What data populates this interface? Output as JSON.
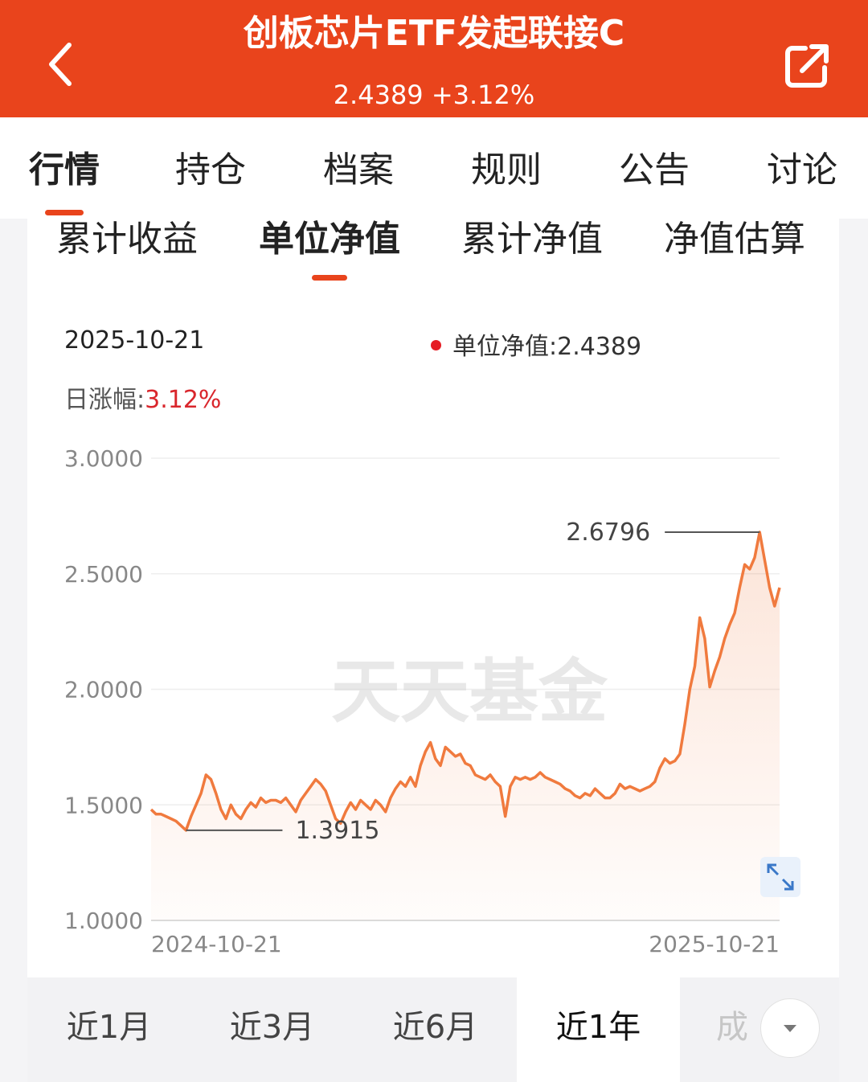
{
  "header": {
    "title": "创板芯片ETF发起联接C",
    "subtitle": "2.4389 +3.12%",
    "back_icon": "chevron-left-icon",
    "share_icon": "share-icon"
  },
  "main_tabs": [
    "行情",
    "持仓",
    "档案",
    "规则",
    "公告",
    "讨论"
  ],
  "sub_tabs": [
    "累计收益",
    "单位净值",
    "累计净值",
    "净值估算"
  ],
  "info": {
    "date": "2025-10-21",
    "nav_label": "单位净值:",
    "nav_value": "2.4389",
    "change_label": "日涨幅:",
    "change_value": "3.12%"
  },
  "watermark": "天天基金",
  "chart_data": {
    "type": "area",
    "y_ticks": [
      "3.0000",
      "2.5000",
      "2.0000",
      "1.5000",
      "1.0000"
    ],
    "ylim": [
      1.0,
      3.0
    ],
    "x_labels": [
      "2024-10-21",
      "2025-10-21"
    ],
    "max_label": "2.6796",
    "min_label": "1.3915",
    "series": [
      {
        "color": "#f07a3e",
        "values": [
          1.48,
          1.46,
          1.46,
          1.45,
          1.44,
          1.43,
          1.41,
          1.39,
          1.45,
          1.5,
          1.55,
          1.63,
          1.61,
          1.55,
          1.48,
          1.44,
          1.5,
          1.46,
          1.44,
          1.48,
          1.51,
          1.49,
          1.53,
          1.51,
          1.52,
          1.52,
          1.51,
          1.53,
          1.5,
          1.47,
          1.52,
          1.55,
          1.58,
          1.61,
          1.59,
          1.56,
          1.5,
          1.44,
          1.42,
          1.47,
          1.51,
          1.48,
          1.52,
          1.5,
          1.48,
          1.52,
          1.5,
          1.47,
          1.53,
          1.57,
          1.6,
          1.58,
          1.62,
          1.58,
          1.67,
          1.73,
          1.77,
          1.7,
          1.67,
          1.75,
          1.73,
          1.71,
          1.72,
          1.68,
          1.67,
          1.63,
          1.62,
          1.61,
          1.63,
          1.6,
          1.58,
          1.45,
          1.58,
          1.62,
          1.61,
          1.62,
          1.61,
          1.62,
          1.64,
          1.62,
          1.61,
          1.6,
          1.59,
          1.57,
          1.56,
          1.54,
          1.53,
          1.55,
          1.54,
          1.57,
          1.55,
          1.53,
          1.53,
          1.55,
          1.59,
          1.57,
          1.58,
          1.57,
          1.56,
          1.57,
          1.58,
          1.6,
          1.66,
          1.7,
          1.68,
          1.69,
          1.72,
          1.85,
          2.0,
          2.1,
          2.31,
          2.22,
          2.01,
          2.08,
          2.14,
          2.22,
          2.28,
          2.33,
          2.44,
          2.54,
          2.52,
          2.57,
          2.68,
          2.56,
          2.44,
          2.36,
          2.44
        ]
      }
    ]
  },
  "periods": [
    "近1月",
    "近3月",
    "近6月",
    "近1年",
    "成"
  ],
  "period_active": "近1年"
}
